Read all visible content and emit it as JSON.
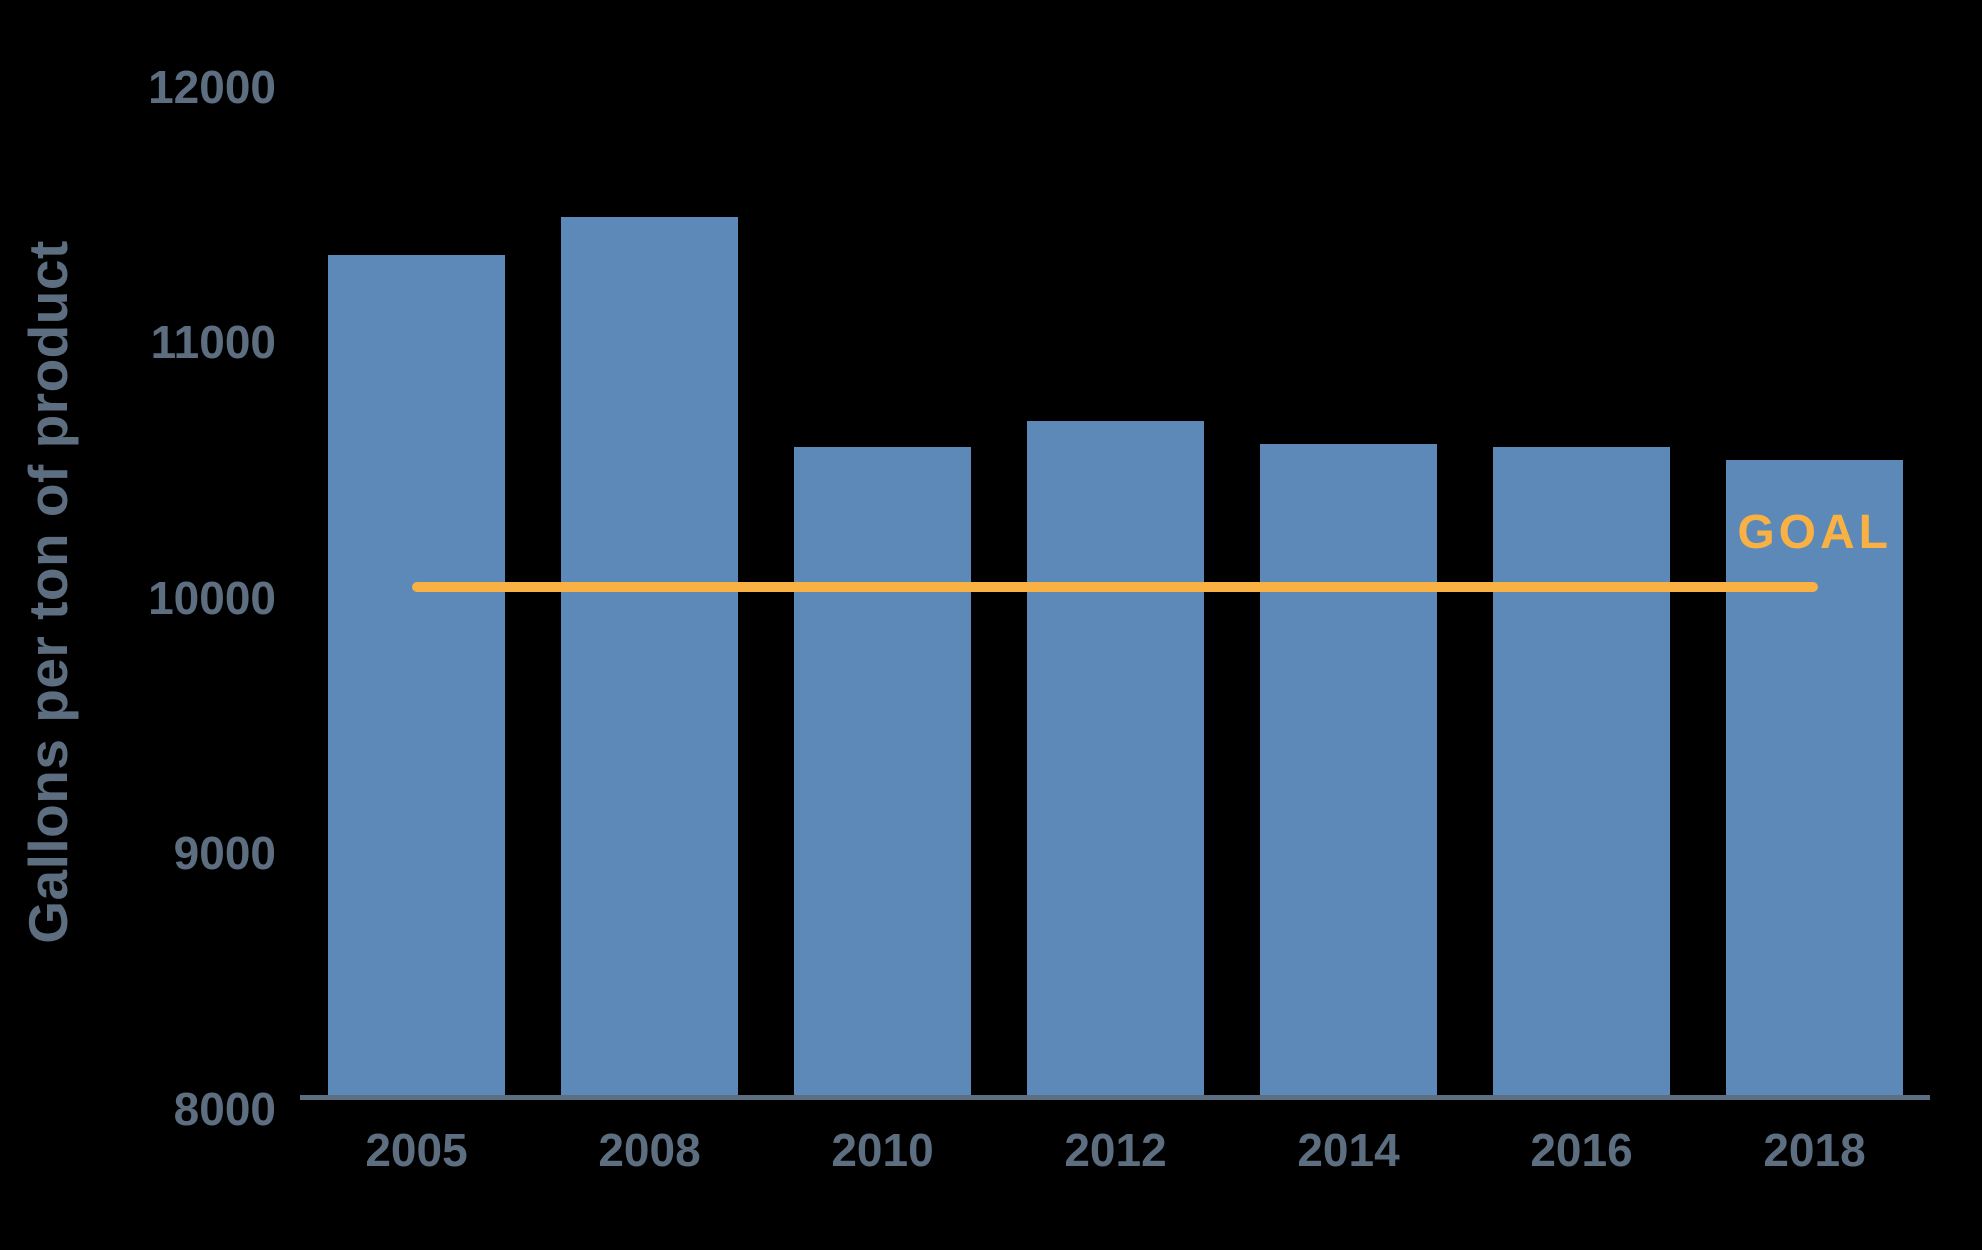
{
  "chart_data": {
    "type": "bar",
    "title": "",
    "xlabel": "",
    "ylabel": "Gallons per ton of product",
    "categories": [
      "2005",
      "2008",
      "2010",
      "2012",
      "2014",
      "2016",
      "2018"
    ],
    "values": [
      11340,
      11490,
      10590,
      10690,
      10600,
      10590,
      10540
    ],
    "goal": {
      "label": "GOAL",
      "value": 10040
    },
    "y_axis": {
      "min": 8000,
      "max": 12000,
      "tick_step": 1000,
      "tick_labels": [
        "12000",
        "11000",
        "10000",
        "9000",
        "8000"
      ]
    },
    "grid": false,
    "legend_position": "none",
    "colors": {
      "bar": "#5c89b7",
      "axis_text": "#5c6e80",
      "axis_line": "#5c6e80",
      "goal": "#f9b143",
      "background": "#000000"
    }
  }
}
